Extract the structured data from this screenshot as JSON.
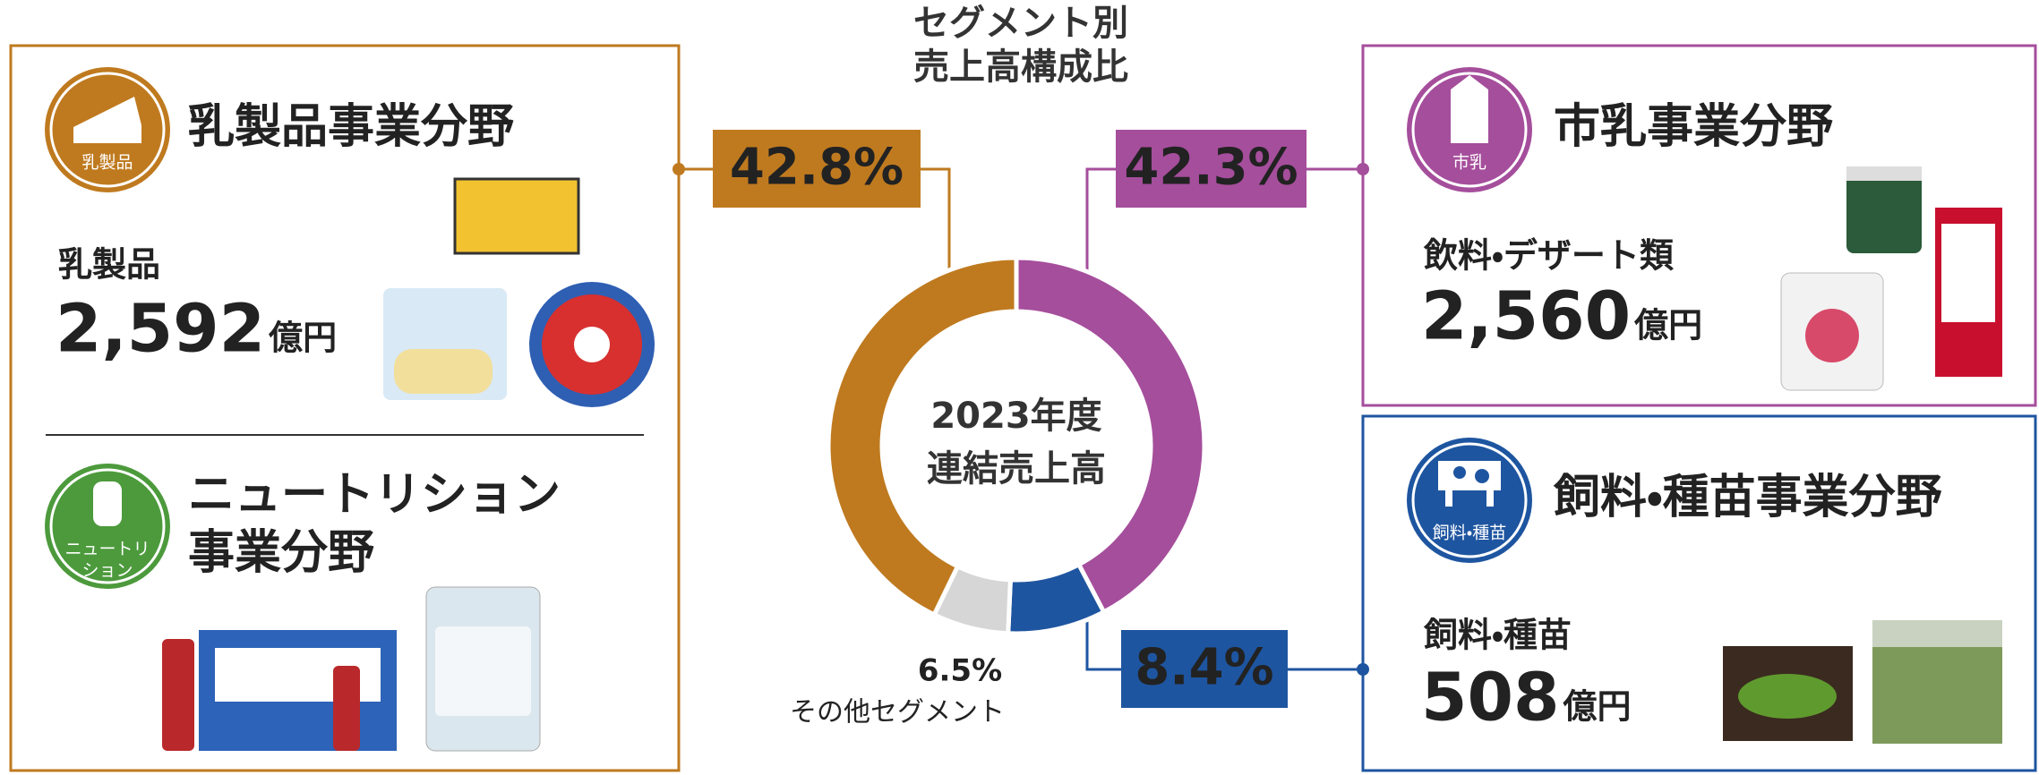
{
  "chart_data": {
    "type": "donut",
    "title": [
      "セグメント別",
      "売上高構成比"
    ],
    "center_label": [
      "2023年度",
      "連結売上高"
    ],
    "categories": [
      null,
      null,
      "その他セグメント",
      null
    ],
    "values": [
      42.3,
      8.4,
      6.5,
      42.8
    ],
    "value_labels": [
      "42.3%",
      "8.4%",
      "6.5%",
      "42.8%"
    ],
    "colors": [
      "#a54e9c",
      "#1e55a0",
      "#d6d6d6",
      "#bf7a1f"
    ]
  },
  "panels": [
    {
      "icon_label": "乳製品",
      "title": "乳製品事業分野",
      "item": "乳製品",
      "amount": "2,592",
      "unit": "億円",
      "color": "#bf7a1f"
    },
    {
      "icon_label": [
        "ニュートリ",
        "ション"
      ],
      "title": [
        "ニュートリション",
        "事業分野"
      ],
      "color": "#4c9a3c"
    },
    {
      "icon_label": "市乳",
      "title": "市乳事業分野",
      "item": "飲料・デザート類",
      "amount": "2,560",
      "unit": "億円",
      "color": "#a54e9c"
    },
    {
      "icon_label": "飼料・種苗",
      "title": "飼料・種苗事業分野",
      "item": "飼料・種苗",
      "amount": "508",
      "unit": "億円",
      "color": "#1e55a0"
    }
  ]
}
